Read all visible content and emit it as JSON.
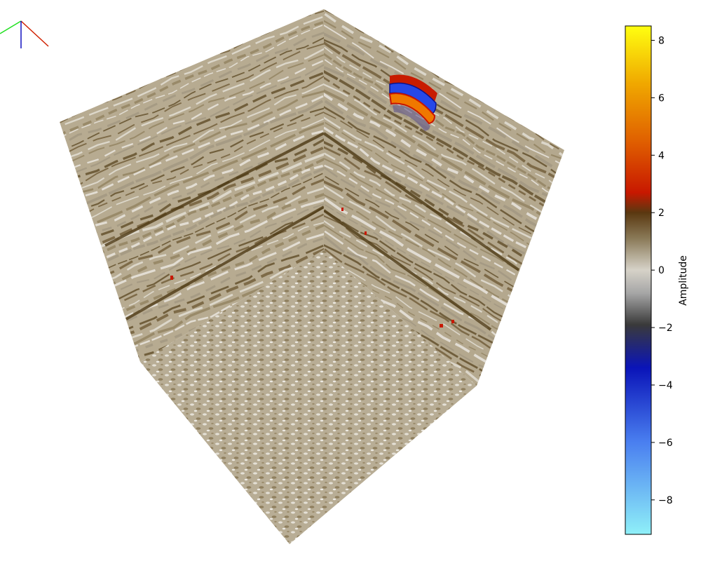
{
  "chart_data": {
    "type": "heatmap",
    "subtype": "3d-seismic-cube",
    "colorbar": {
      "label": "Amplitude",
      "ticks": [
        8,
        6,
        4,
        2,
        0,
        -2,
        -4,
        -6,
        -8
      ],
      "tick_labels": [
        "8",
        "6",
        "4",
        "2",
        "0",
        "−2",
        "−4",
        "−6",
        "−8"
      ],
      "range": [
        -9.2,
        8.5
      ],
      "colormap": [
        {
          "value": -9.2,
          "color": "#8ff0f8"
        },
        {
          "value": -6.0,
          "color": "#4a7ff0"
        },
        {
          "value": -3.4,
          "color": "#0a14b8"
        },
        {
          "value": -1.9,
          "color": "#3a3a3a"
        },
        {
          "value": -0.8,
          "color": "#a6a6a6"
        },
        {
          "value": 0.0,
          "color": "#d6d2c8"
        },
        {
          "value": 1.1,
          "color": "#8a7a58"
        },
        {
          "value": 2.0,
          "color": "#5a3810"
        },
        {
          "value": 2.7,
          "color": "#c81800"
        },
        {
          "value": 4.5,
          "color": "#e06000"
        },
        {
          "value": 6.5,
          "color": "#f0a800"
        },
        {
          "value": 8.5,
          "color": "#ffff10"
        }
      ]
    },
    "axes_triad": {
      "x_color": "#d02000",
      "y_color": "#20e020",
      "z_color": "#1010c0"
    },
    "faces": [
      "left-inline",
      "right-crossline",
      "bottom-timeslice"
    ]
  }
}
